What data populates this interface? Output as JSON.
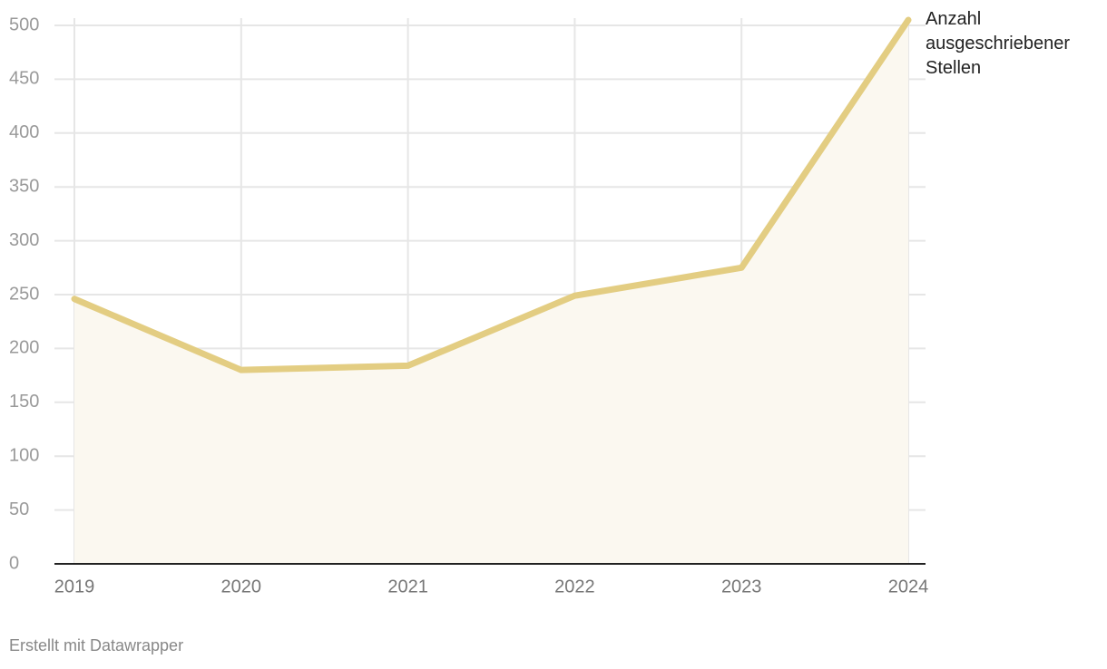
{
  "chart_data": {
    "type": "line",
    "categories": [
      "2019",
      "2020",
      "2021",
      "2022",
      "2023",
      "2024"
    ],
    "series": [
      {
        "name": "Anzahl ausgeschriebener Stellen",
        "color": "#e3cd82",
        "values": [
          246,
          180,
          184,
          249,
          275,
          505
        ]
      }
    ],
    "area_color": "#fbf8f0",
    "ylim": [
      0,
      500
    ],
    "yticks": [
      0,
      50,
      100,
      150,
      200,
      250,
      300,
      350,
      400,
      450,
      500
    ],
    "grid": true,
    "source": "Erstellt mit Datawrapper"
  }
}
